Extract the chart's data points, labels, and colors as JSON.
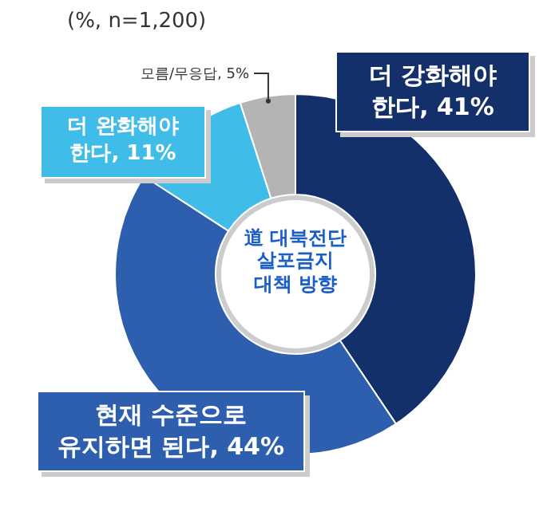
{
  "chart_data": {
    "type": "donut",
    "title": "道 대북전단 살포금지 대책 방향",
    "subtitle": "(%, n=1,200)",
    "categories": [
      "더 강화해야 한다",
      "현재 수준으로 유지하면 된다",
      "더 완화해야 한다",
      "모름/무응답"
    ],
    "values": [
      41,
      44,
      11,
      5
    ],
    "value_labels": [
      "41%",
      "44%",
      "11%",
      "5%"
    ],
    "colors": [
      "#14306a",
      "#2d5fae",
      "#3fbce8",
      "#b4b4b4"
    ]
  }
}
